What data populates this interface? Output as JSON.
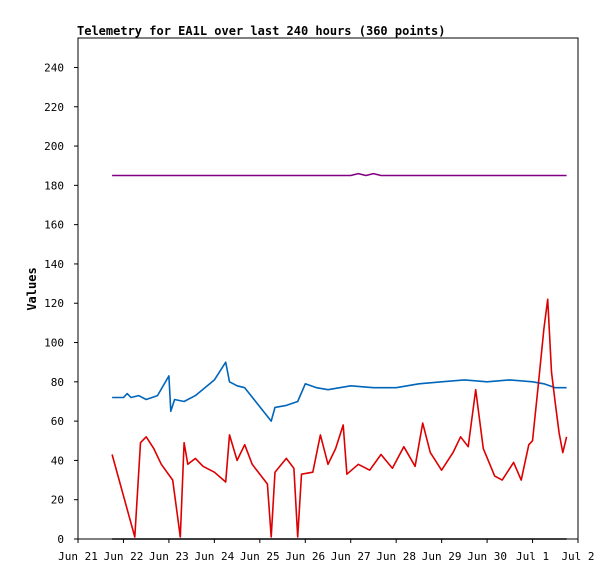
{
  "chart_data": {
    "type": "line",
    "title": "Telemetry for EA1L over last 240 hours (360 points)",
    "xlabel": "",
    "ylabel": "Values",
    "ylim": [
      0,
      255
    ],
    "xlim": [
      "Jun 21",
      "Jul 2"
    ],
    "grid": false,
    "yticks": [
      0,
      20,
      40,
      60,
      80,
      100,
      120,
      140,
      160,
      180,
      200,
      220,
      240
    ],
    "xticks": [
      "Jun 21",
      "Jun 22",
      "Jun 23",
      "Jun 24",
      "Jun 25",
      "Jun 26",
      "Jun 27",
      "Jun 28",
      "Jun 29",
      "Jun 30",
      "Jul 1",
      "Jul 2"
    ],
    "series": [
      {
        "color": "#800080",
        "points": [
          [
            "Jun 21 18:00",
            185
          ],
          [
            "Jun 27 00:00",
            185
          ],
          [
            "Jun 27 04:00",
            186
          ],
          [
            "Jun 27 08:00",
            185
          ],
          [
            "Jun 27 12:00",
            186
          ],
          [
            "Jun 27 16:00",
            185
          ],
          [
            "Jul 1 18:00",
            185
          ]
        ]
      },
      {
        "color": "#0066bb",
        "points": [
          [
            "Jun 21 18:00",
            72
          ],
          [
            "Jun 22 00:00",
            72
          ],
          [
            "Jun 22 02:00",
            74
          ],
          [
            "Jun 22 04:00",
            72
          ],
          [
            "Jun 22 08:00",
            73
          ],
          [
            "Jun 22 12:00",
            71
          ],
          [
            "Jun 22 18:00",
            73
          ],
          [
            "Jun 23 00:00",
            83
          ],
          [
            "Jun 23 01:00",
            65
          ],
          [
            "Jun 23 03:00",
            71
          ],
          [
            "Jun 23 08:00",
            70
          ],
          [
            "Jun 23 14:00",
            73
          ],
          [
            "Jun 24 00:00",
            81
          ],
          [
            "Jun 24 06:00",
            90
          ],
          [
            "Jun 24 08:00",
            80
          ],
          [
            "Jun 24 12:00",
            78
          ],
          [
            "Jun 24 16:00",
            77
          ],
          [
            "Jun 25 06:00",
            60
          ],
          [
            "Jun 25 08:00",
            67
          ],
          [
            "Jun 25 14:00",
            68
          ],
          [
            "Jun 25 20:00",
            70
          ],
          [
            "Jun 26 00:00",
            79
          ],
          [
            "Jun 26 06:00",
            77
          ],
          [
            "Jun 26 12:00",
            76
          ],
          [
            "Jun 27 00:00",
            78
          ],
          [
            "Jun 27 12:00",
            77
          ],
          [
            "Jun 28 00:00",
            77
          ],
          [
            "Jun 28 12:00",
            79
          ],
          [
            "Jun 29 00:00",
            80
          ],
          [
            "Jun 29 12:00",
            81
          ],
          [
            "Jun 30 00:00",
            80
          ],
          [
            "Jun 30 12:00",
            81
          ],
          [
            "Jul 1 00:00",
            80
          ],
          [
            "Jul 1 06:00",
            79
          ],
          [
            "Jul 1 12:00",
            77
          ],
          [
            "Jul 1 18:00",
            77
          ]
        ]
      },
      {
        "color": "#dd0000",
        "points": [
          [
            "Jun 21 18:00",
            43
          ],
          [
            "Jun 22 06:00",
            1
          ],
          [
            "Jun 22 09:00",
            49
          ],
          [
            "Jun 22 12:00",
            52
          ],
          [
            "Jun 22 16:00",
            46
          ],
          [
            "Jun 22 20:00",
            38
          ],
          [
            "Jun 23 02:00",
            30
          ],
          [
            "Jun 23 06:00",
            1
          ],
          [
            "Jun 23 08:00",
            49
          ],
          [
            "Jun 23 10:00",
            38
          ],
          [
            "Jun 23 14:00",
            41
          ],
          [
            "Jun 23 18:00",
            37
          ],
          [
            "Jun 24 00:00",
            34
          ],
          [
            "Jun 24 06:00",
            29
          ],
          [
            "Jun 24 08:00",
            53
          ],
          [
            "Jun 24 12:00",
            40
          ],
          [
            "Jun 24 16:00",
            48
          ],
          [
            "Jun 24 20:00",
            38
          ],
          [
            "Jun 25 04:00",
            28
          ],
          [
            "Jun 25 06:00",
            1
          ],
          [
            "Jun 25 08:00",
            34
          ],
          [
            "Jun 25 14:00",
            41
          ],
          [
            "Jun 25 18:00",
            36
          ],
          [
            "Jun 25 20:00",
            1
          ],
          [
            "Jun 25 22:00",
            33
          ],
          [
            "Jun 26 04:00",
            34
          ],
          [
            "Jun 26 08:00",
            53
          ],
          [
            "Jun 26 12:00",
            38
          ],
          [
            "Jun 26 16:00",
            46
          ],
          [
            "Jun 26 20:00",
            58
          ],
          [
            "Jun 26 22:00",
            33
          ],
          [
            "Jun 27 04:00",
            38
          ],
          [
            "Jun 27 10:00",
            35
          ],
          [
            "Jun 27 16:00",
            43
          ],
          [
            "Jun 27 22:00",
            36
          ],
          [
            "Jun 28 04:00",
            47
          ],
          [
            "Jun 28 10:00",
            37
          ],
          [
            "Jun 28 14:00",
            59
          ],
          [
            "Jun 28 18:00",
            44
          ],
          [
            "Jun 29 00:00",
            35
          ],
          [
            "Jun 29 06:00",
            44
          ],
          [
            "Jun 29 10:00",
            52
          ],
          [
            "Jun 29 14:00",
            47
          ],
          [
            "Jun 29 18:00",
            76
          ],
          [
            "Jun 29 22:00",
            46
          ],
          [
            "Jun 30 04:00",
            32
          ],
          [
            "Jun 30 08:00",
            30
          ],
          [
            "Jun 30 14:00",
            39
          ],
          [
            "Jun 30 18:00",
            30
          ],
          [
            "Jun 30 22:00",
            48
          ],
          [
            "Jul 1 00:00",
            50
          ],
          [
            "Jul 1 03:00",
            78
          ],
          [
            "Jul 1 06:00",
            107
          ],
          [
            "Jul 1 08:00",
            122
          ],
          [
            "Jul 1 10:00",
            85
          ],
          [
            "Jul 1 12:00",
            69
          ],
          [
            "Jul 1 14:00",
            54
          ],
          [
            "Jul 1 16:00",
            44
          ],
          [
            "Jul 1 18:00",
            52
          ]
        ]
      },
      {
        "color": "#000000",
        "points": [
          [
            "Jun 21 18:00",
            0
          ],
          [
            "Jul 1 18:00",
            0
          ]
        ]
      }
    ]
  }
}
